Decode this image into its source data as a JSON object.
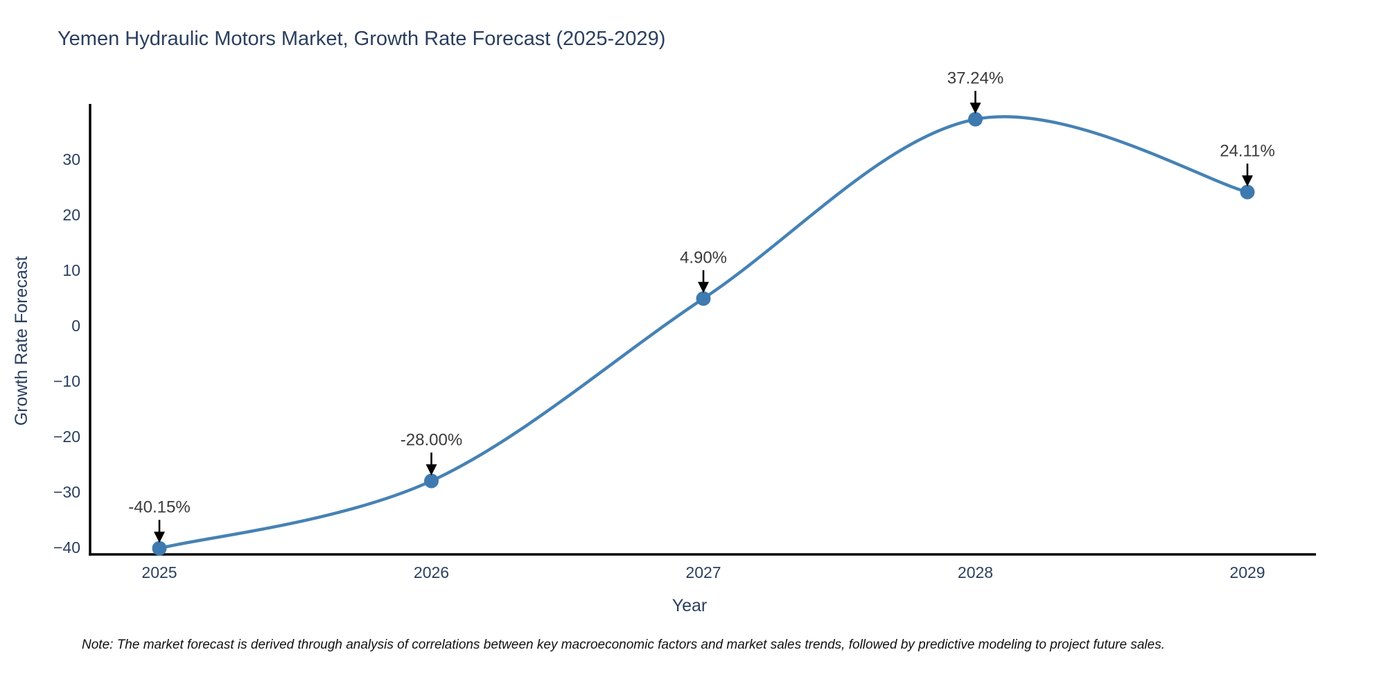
{
  "chart_data": {
    "type": "line",
    "title": "Yemen Hydraulic Motors Market, Growth Rate Forecast (2025-2029)",
    "xlabel": "Year",
    "ylabel": "Growth Rate Forecast",
    "x": [
      2025,
      2026,
      2027,
      2028,
      2029
    ],
    "series": [
      {
        "name": "Growth Rate Forecast",
        "values": [
          -40.15,
          -28.0,
          4.9,
          37.24,
          24.11
        ],
        "point_labels": [
          "-40.15%",
          "-28.00%",
          "4.90%",
          "37.24%",
          "24.11%"
        ]
      }
    ],
    "xtick_labels": [
      "2025",
      "2026",
      "2027",
      "2028",
      "2029"
    ],
    "yticks": [
      {
        "value": 30,
        "label": "30"
      },
      {
        "value": 20,
        "label": "20"
      },
      {
        "value": 10,
        "label": "10"
      },
      {
        "value": 0,
        "label": "0"
      },
      {
        "value": -10,
        "label": "−10"
      },
      {
        "value": -20,
        "label": "−20"
      },
      {
        "value": -30,
        "label": "−30"
      },
      {
        "value": -40,
        "label": "−40"
      }
    ],
    "ylim": [
      -41.25,
      39.0
    ],
    "xlim": [
      2024.75,
      2029.25
    ],
    "grid": false,
    "legend_position": "none",
    "colors": {
      "line": "#4682b4",
      "marker": "#3e7ab0",
      "annotation_text": "#3a3a3a",
      "arrow": "#000000",
      "axis_line": "#000000",
      "tick_text": "#2a3f5f",
      "title_text": "#2a3f5f",
      "note_text": "#111111"
    }
  },
  "note": "Note: The market forecast is derived through analysis of correlations between key macroeconomic factors and market sales trends, followed by predictive modeling to project future sales."
}
